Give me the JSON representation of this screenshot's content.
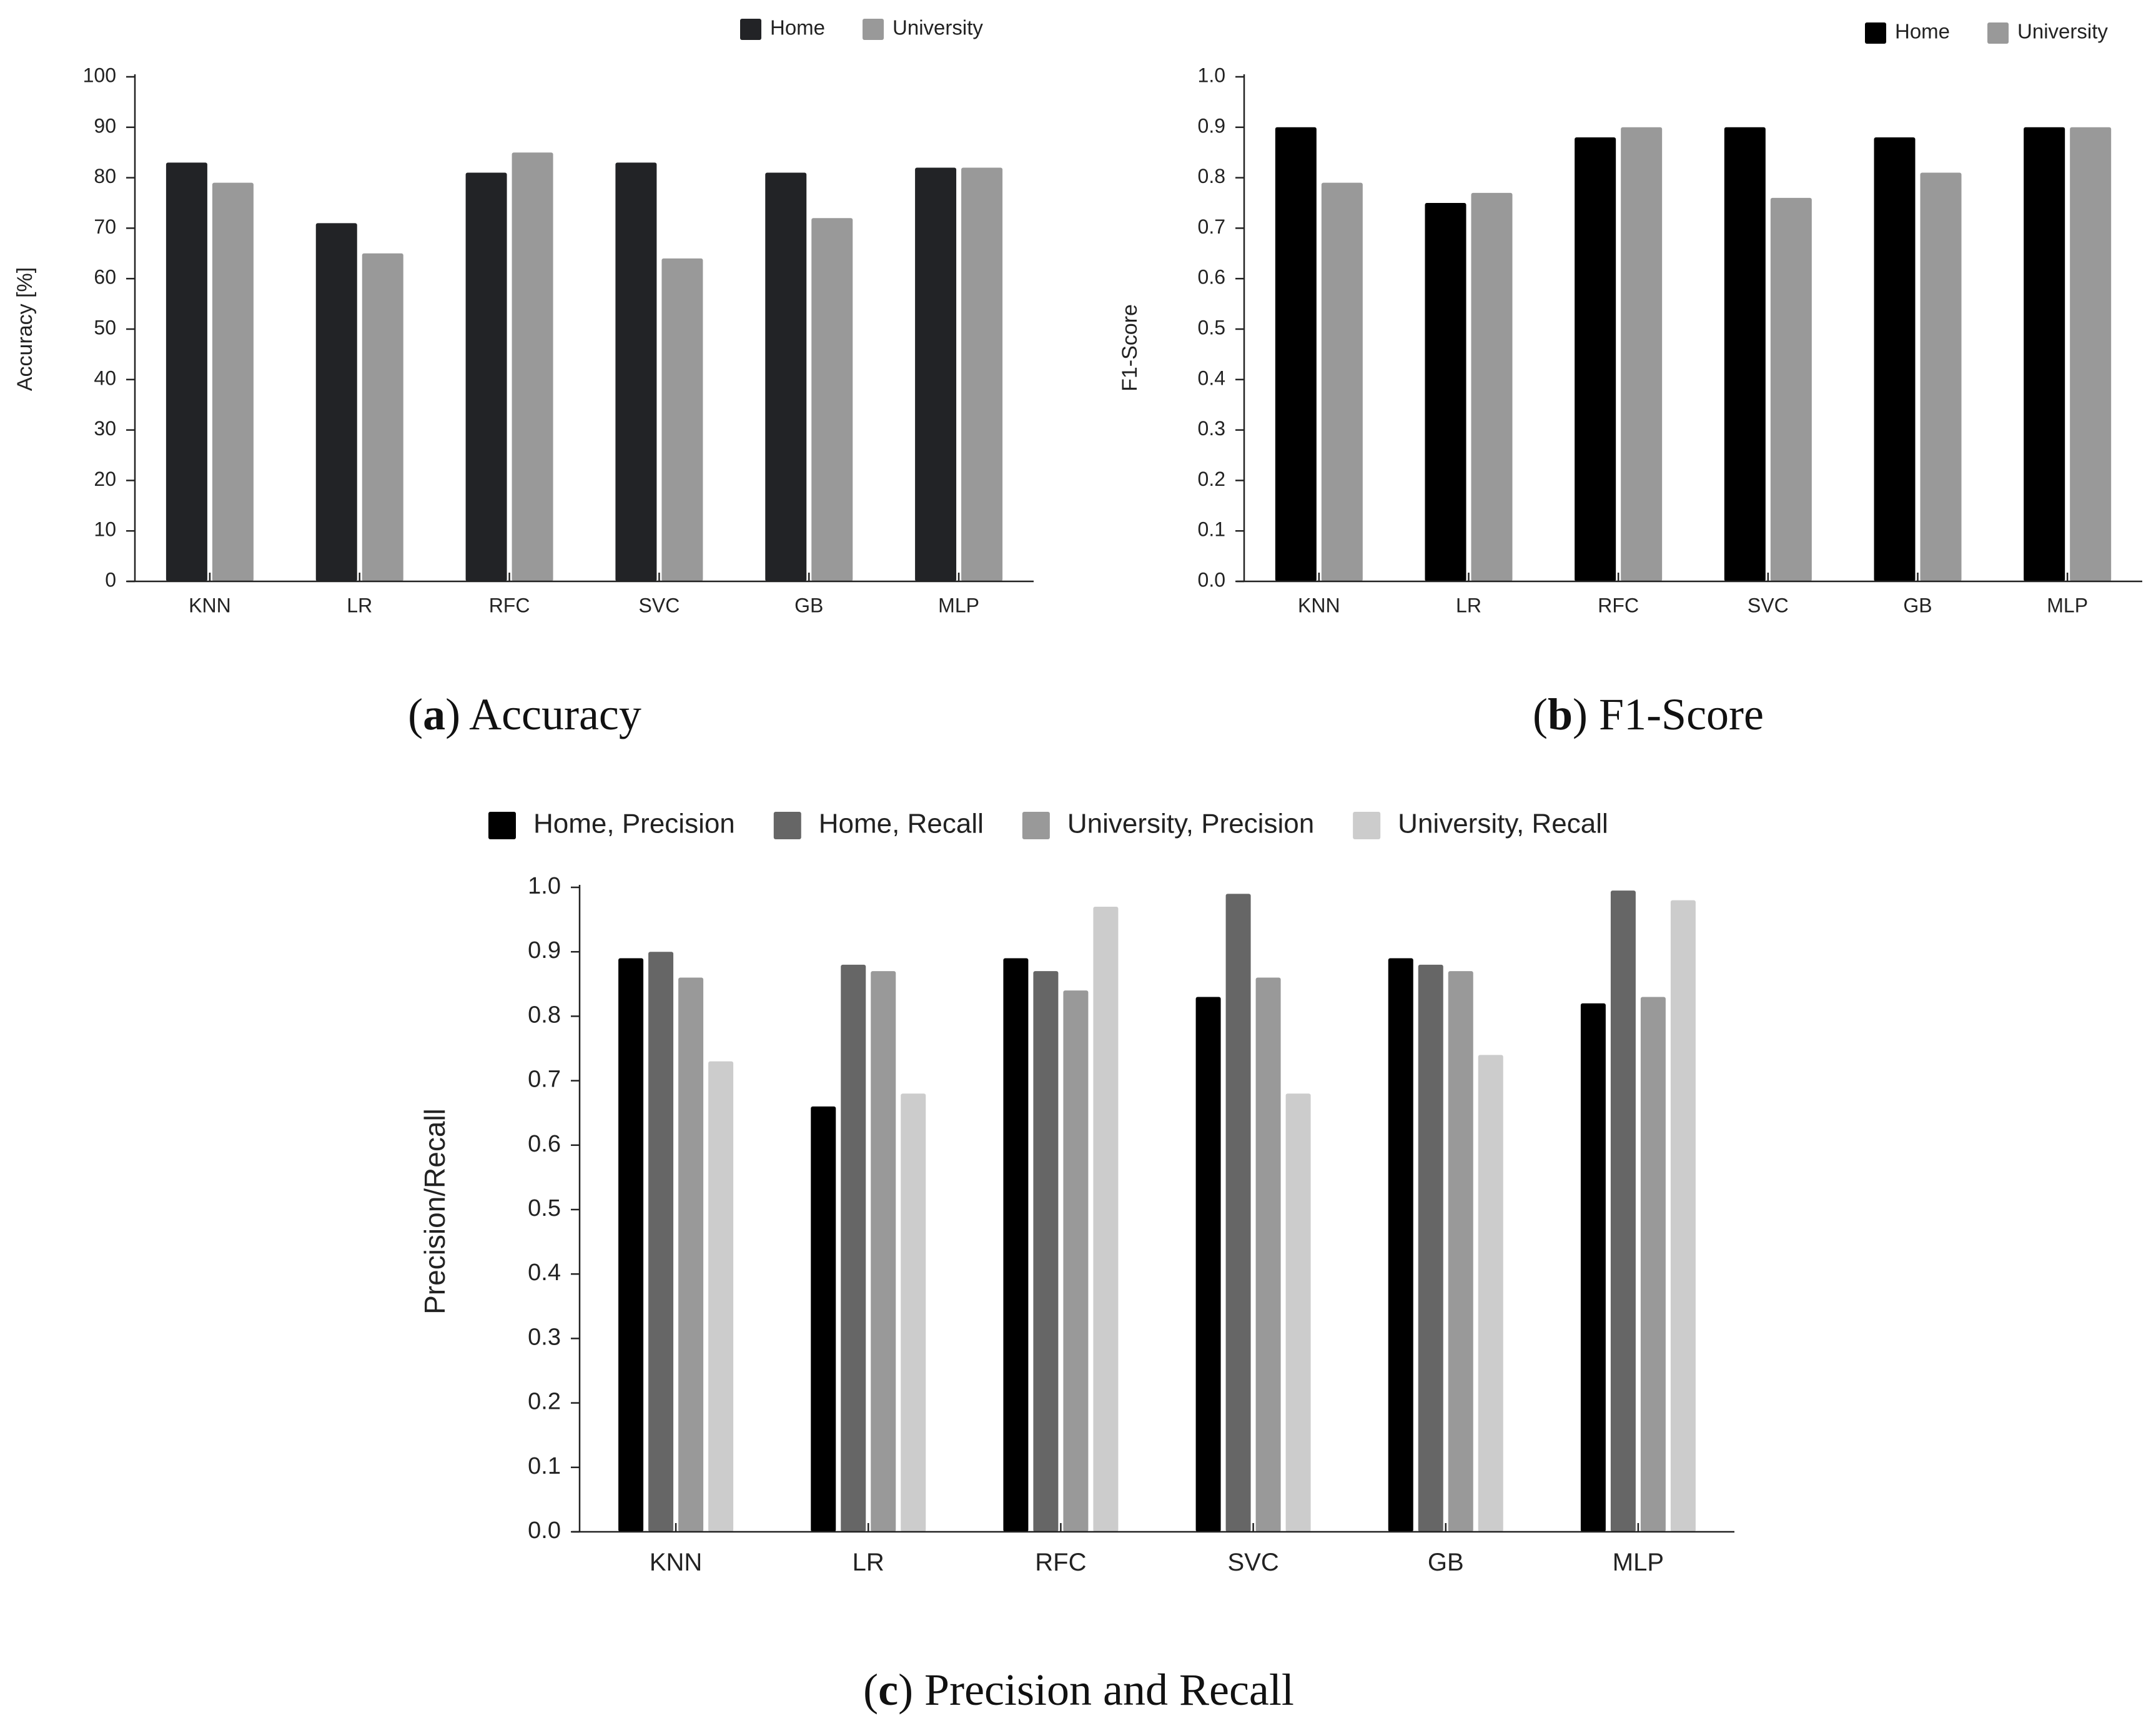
{
  "chart_data": [
    {
      "id": "a",
      "type": "bar",
      "title": "",
      "caption": {
        "letter": "a",
        "text": "Accuracy"
      },
      "xlabel": "",
      "ylabel": "Accuracy [%]",
      "categories": [
        "KNN",
        "LR",
        "RFC",
        "SVC",
        "GB",
        "MLP"
      ],
      "yticks": [
        "0",
        "10",
        "20",
        "30",
        "40",
        "50",
        "60",
        "70",
        "80",
        "90",
        "100"
      ],
      "ylim": [
        0,
        100
      ],
      "grid": false,
      "legend_position": "top-right",
      "series": [
        {
          "name": "Home",
          "color": "#222326",
          "values": [
            83,
            71,
            81,
            83,
            81,
            82
          ]
        },
        {
          "name": "University",
          "color": "#999999",
          "values": [
            79,
            65,
            85,
            64,
            72,
            82
          ]
        }
      ]
    },
    {
      "id": "b",
      "type": "bar",
      "title": "",
      "caption": {
        "letter": "b",
        "text": "F1-Score"
      },
      "xlabel": "",
      "ylabel": "F1-Score",
      "categories": [
        "KNN",
        "LR",
        "RFC",
        "SVC",
        "GB",
        "MLP"
      ],
      "yticks": [
        "0.0",
        "0.1",
        "0.2",
        "0.3",
        "0.4",
        "0.5",
        "0.6",
        "0.7",
        "0.8",
        "0.9",
        "1.0"
      ],
      "ylim": [
        0,
        1
      ],
      "grid": false,
      "legend_position": "top-right",
      "series": [
        {
          "name": "Home",
          "color": "#000000",
          "values": [
            0.9,
            0.75,
            0.88,
            0.9,
            0.88,
            0.9
          ]
        },
        {
          "name": "University",
          "color": "#999999",
          "values": [
            0.79,
            0.77,
            0.9,
            0.76,
            0.81,
            0.9
          ]
        }
      ]
    },
    {
      "id": "c",
      "type": "bar",
      "title": "",
      "caption": {
        "letter": "c",
        "text": "Precision and Recall"
      },
      "xlabel": "",
      "ylabel": "Precision/Recall",
      "categories": [
        "KNN",
        "LR",
        "RFC",
        "SVC",
        "GB",
        "MLP"
      ],
      "yticks": [
        "0.0",
        "0.1",
        "0.2",
        "0.3",
        "0.4",
        "0.5",
        "0.6",
        "0.7",
        "0.8",
        "0.9",
        "1.0"
      ],
      "ylim": [
        0,
        1
      ],
      "grid": false,
      "legend_position": "top",
      "series": [
        {
          "name": "Home, Precision",
          "color": "#000000",
          "values": [
            0.89,
            0.66,
            0.89,
            0.83,
            0.89,
            0.82
          ]
        },
        {
          "name": "Home, Recall",
          "color": "#666666",
          "values": [
            0.9,
            0.88,
            0.87,
            0.99,
            0.88,
            0.995
          ]
        },
        {
          "name": "University, Precision",
          "color": "#999999",
          "values": [
            0.86,
            0.87,
            0.84,
            0.86,
            0.87,
            0.83
          ]
        },
        {
          "name": "University, Recall",
          "color": "#cccccc",
          "values": [
            0.73,
            0.68,
            0.97,
            0.68,
            0.74,
            0.98
          ]
        }
      ]
    }
  ]
}
